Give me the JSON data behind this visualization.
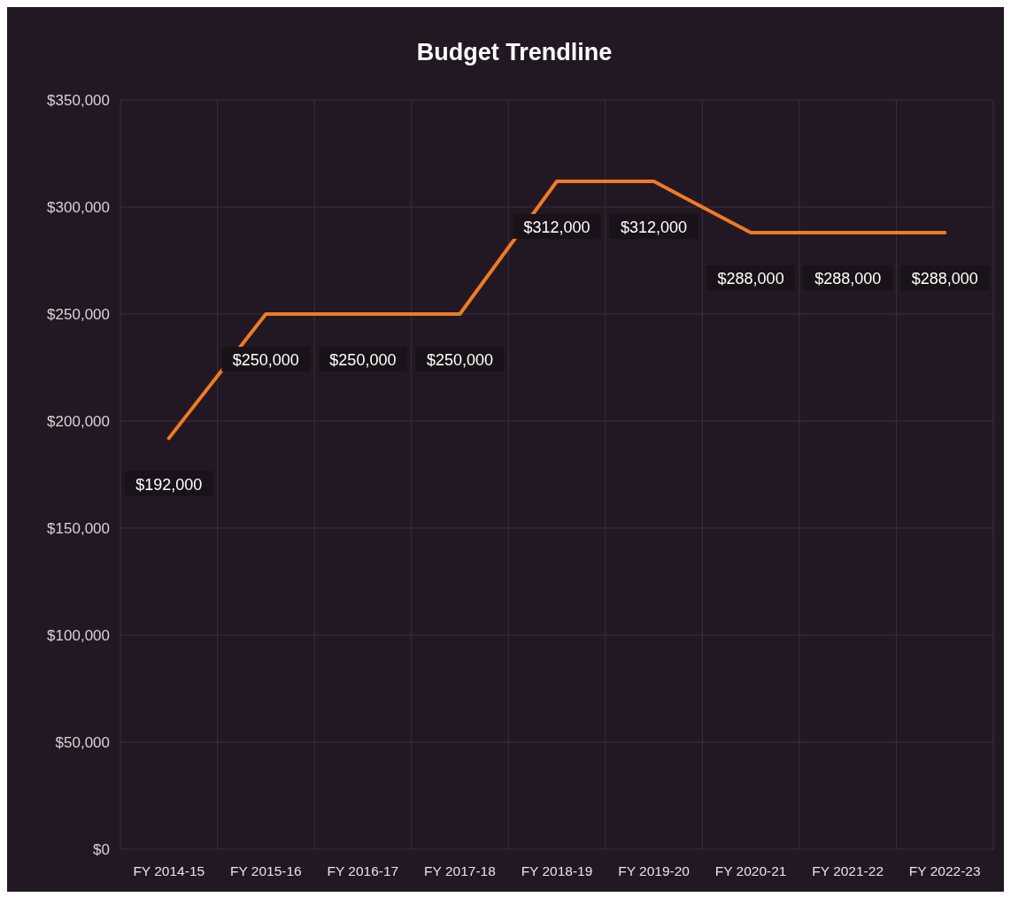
{
  "chart_data": {
    "type": "line",
    "title": "Budget Trendline",
    "categories": [
      "FY 2014-15",
      "FY 2015-16",
      "FY 2016-17",
      "FY 2017-18",
      "FY 2018-19",
      "FY 2019-20",
      "FY 2020-21",
      "FY 2021-22",
      "FY 2022-23"
    ],
    "series": [
      {
        "color": "#f07b22",
        "values": [
          192000,
          250000,
          250000,
          250000,
          312000,
          312000,
          288000,
          288000,
          288000
        ]
      }
    ],
    "ylim": [
      0,
      350000
    ],
    "yticks": [
      {
        "value": 0,
        "label": "$0"
      },
      {
        "value": 50000,
        "label": "$50,000"
      },
      {
        "value": 100000,
        "label": "$100,000"
      },
      {
        "value": 150000,
        "label": "$150,000"
      },
      {
        "value": 200000,
        "label": "$200,000"
      },
      {
        "value": 250000,
        "label": "$250,000"
      },
      {
        "value": 300000,
        "label": "$300,000"
      },
      {
        "value": 350000,
        "label": "$350,000"
      }
    ],
    "value_labels": [
      "$192,000",
      "$250,000",
      "$250,000",
      "$250,000",
      "$312,000",
      "$312,000",
      "$288,000",
      "$288,000",
      "$288,000"
    ],
    "grid": true,
    "marker": "none",
    "line_style": "solid"
  }
}
